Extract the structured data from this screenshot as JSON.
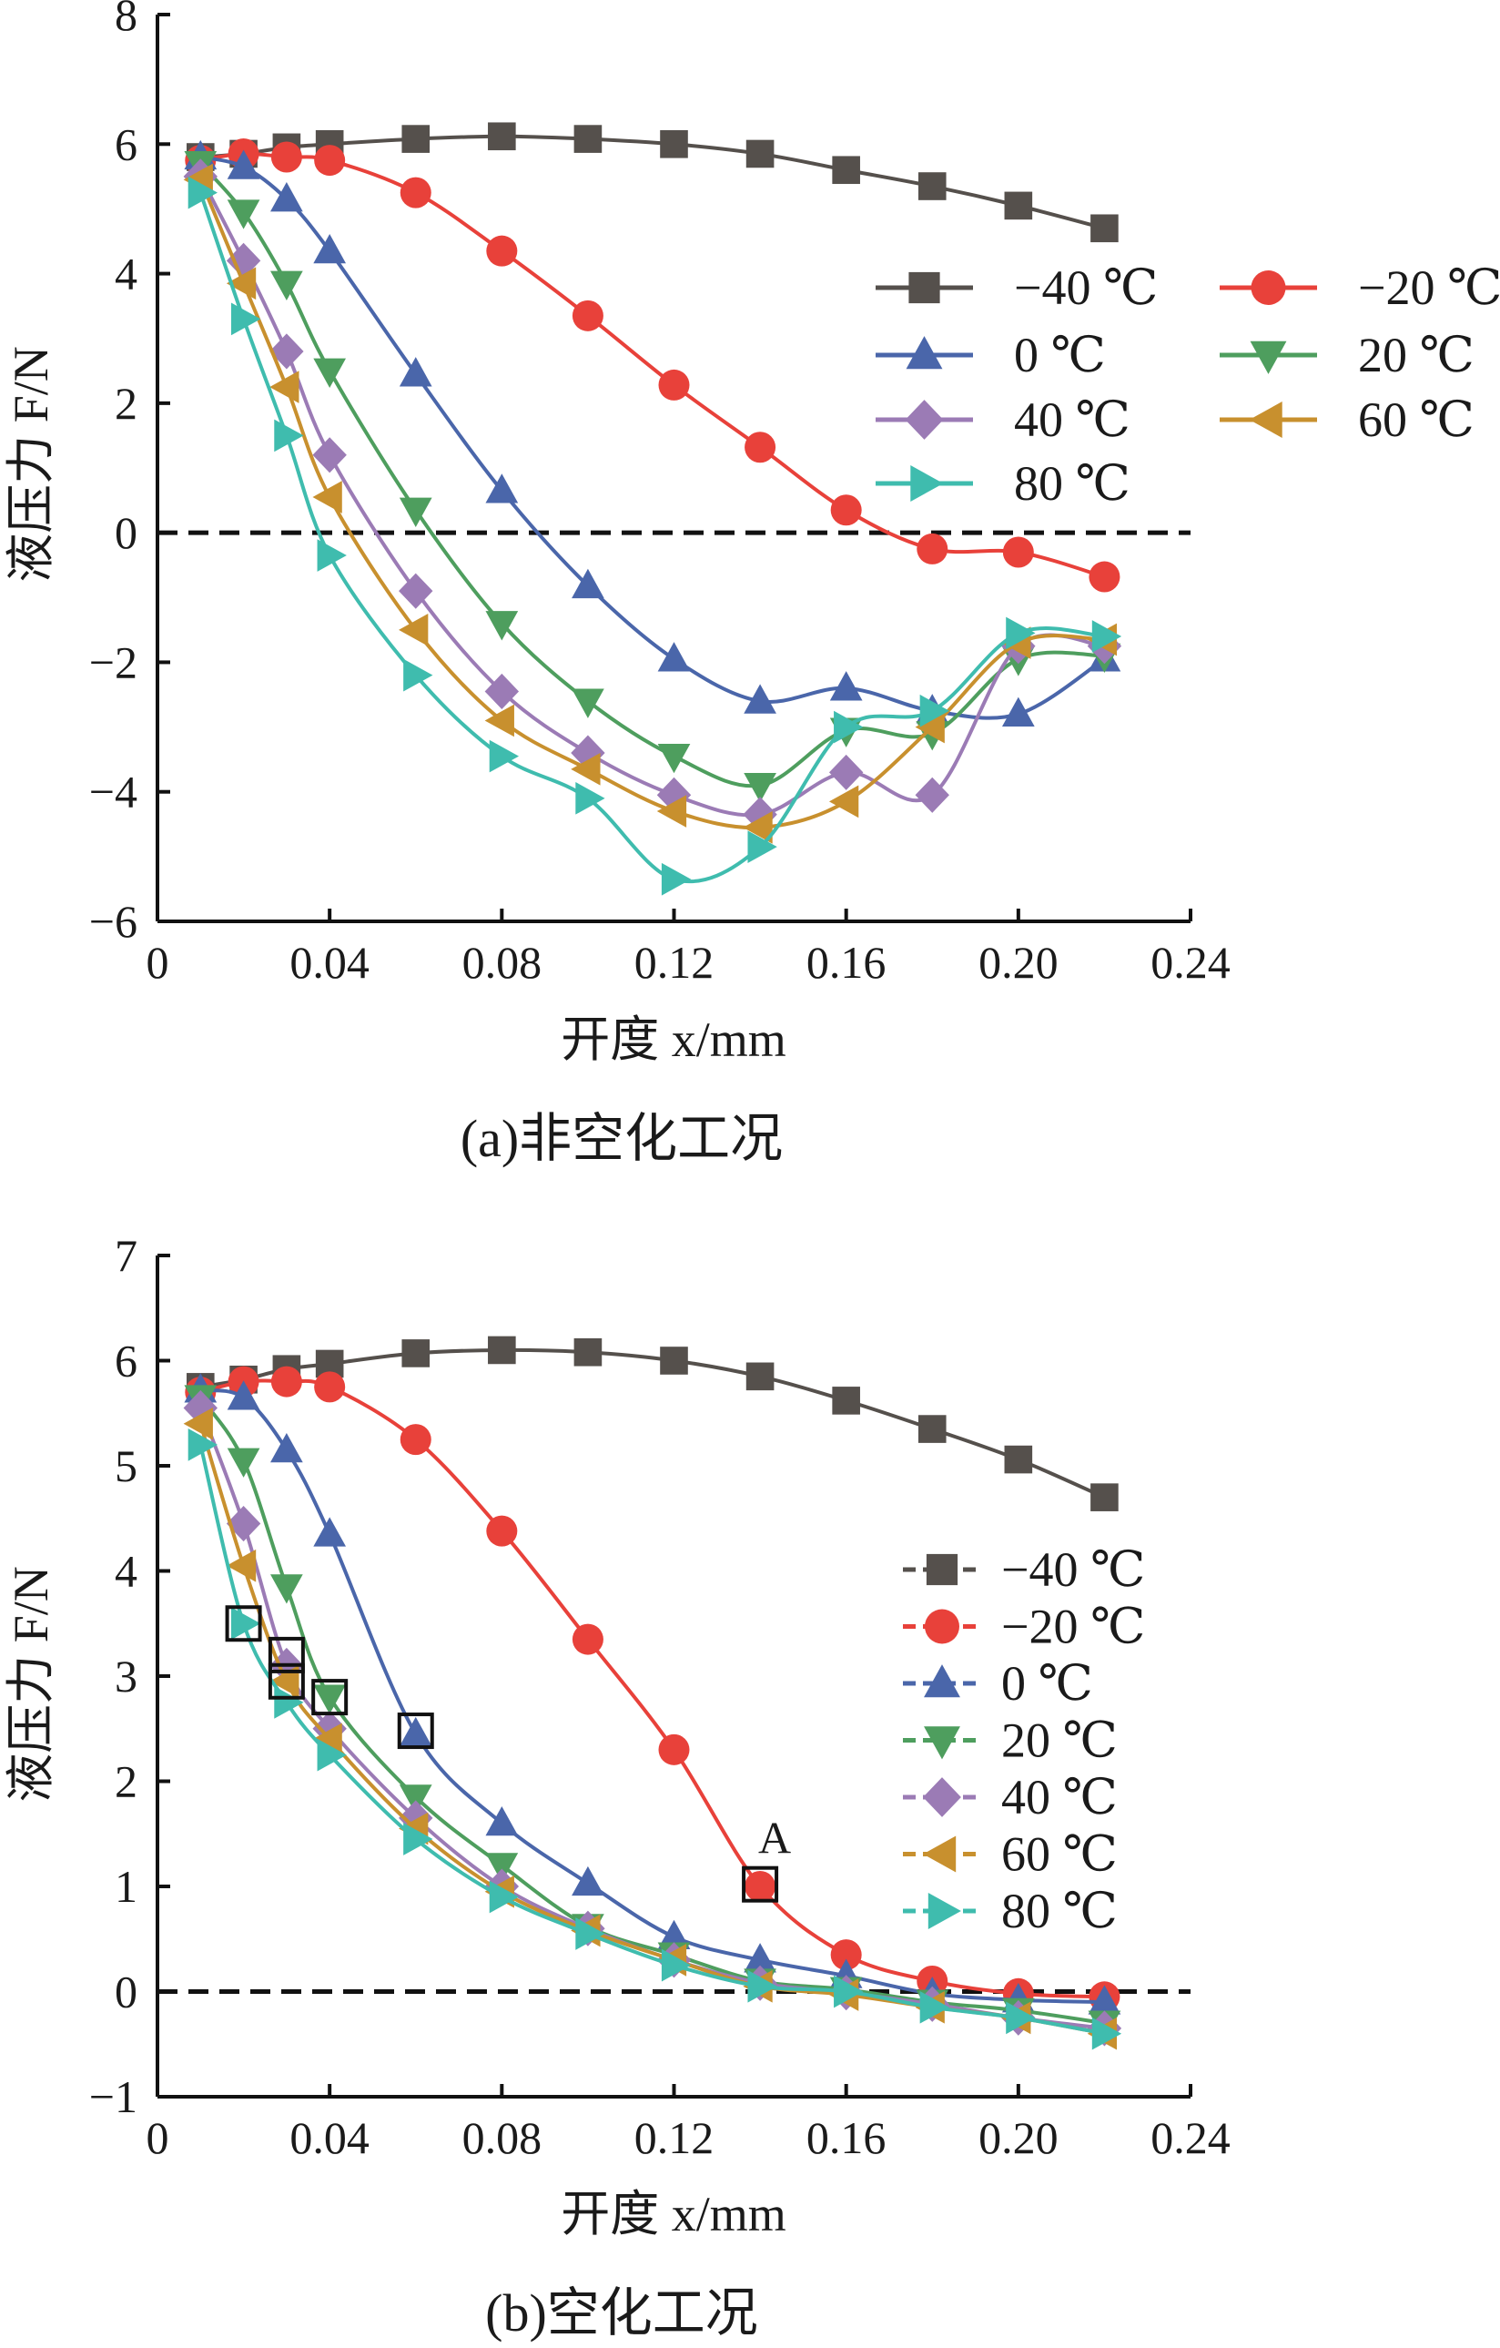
{
  "chart_data": [
    {
      "type": "line",
      "caption": "(a)非空化工况",
      "xlabel": "开度 x/mm",
      "ylabel": "液压力 F/N",
      "xlim": [
        0,
        0.24
      ],
      "ylim": [
        -6,
        8
      ],
      "x_ticks": [
        "0",
        "0.04",
        "0.08",
        "0.12",
        "0.16",
        "0.20",
        "0.24"
      ],
      "y_ticks": [
        "−6",
        "−4",
        "−2",
        "0",
        "2",
        "4",
        "6",
        "8"
      ],
      "reference_line": {
        "y": 0,
        "style": "dashed"
      },
      "legend": {
        "placement": "right",
        "columns": 2,
        "line_style": "solid"
      },
      "x": [
        0.01,
        0.02,
        0.03,
        0.04,
        0.06,
        0.08,
        0.1,
        0.12,
        0.14,
        0.16,
        0.18,
        0.2,
        0.22
      ],
      "series": [
        {
          "name": "−40 ℃",
          "marker": "square",
          "color": "#55504c",
          "values": [
            5.8,
            5.85,
            5.95,
            6.0,
            6.08,
            6.12,
            6.08,
            6.0,
            5.85,
            5.6,
            5.35,
            5.05,
            4.7
          ]
        },
        {
          "name": "−20 ℃",
          "marker": "circle",
          "color": "#e8413a",
          "values": [
            5.75,
            5.85,
            5.8,
            5.75,
            5.25,
            4.35,
            3.35,
            2.28,
            1.32,
            0.35,
            -0.25,
            -0.3,
            -0.68
          ]
        },
        {
          "name": "0 ℃",
          "marker": "triangle-up",
          "color": "#4a66aa",
          "values": [
            5.8,
            5.65,
            5.15,
            4.35,
            2.45,
            0.65,
            -0.82,
            -1.95,
            -2.6,
            -2.4,
            -2.75,
            -2.8,
            -1.95
          ]
        },
        {
          "name": "20 ℃",
          "marker": "triangle-down",
          "color": "#4e9e5e",
          "values": [
            5.7,
            4.95,
            3.85,
            2.5,
            0.35,
            -1.4,
            -2.6,
            -3.45,
            -3.9,
            -3.05,
            -3.1,
            -1.95,
            -1.9
          ]
        },
        {
          "name": "40 ℃",
          "marker": "diamond",
          "color": "#9b7bb5",
          "values": [
            5.5,
            4.2,
            2.8,
            1.2,
            -0.9,
            -2.45,
            -3.4,
            -4.05,
            -4.35,
            -3.7,
            -4.05,
            -1.75,
            -1.75
          ]
        },
        {
          "name": "60 ℃",
          "marker": "triangle-left",
          "color": "#c8902e",
          "values": [
            5.45,
            3.85,
            2.25,
            0.55,
            -1.5,
            -2.9,
            -3.65,
            -4.3,
            -4.55,
            -4.15,
            -3.0,
            -1.7,
            -1.65
          ]
        },
        {
          "name": "80 ℃",
          "marker": "triangle-right",
          "color": "#3fbcae",
          "values": [
            5.25,
            3.3,
            1.5,
            -0.35,
            -2.2,
            -3.45,
            -4.1,
            -5.35,
            -4.85,
            -3.0,
            -2.75,
            -1.55,
            -1.6
          ]
        }
      ],
      "highlights": []
    },
    {
      "type": "line",
      "caption": "(b)空化工况",
      "xlabel": "开度 x/mm",
      "ylabel": "液压力 F/N",
      "xlim": [
        0,
        0.24
      ],
      "ylim": [
        -1,
        7
      ],
      "x_ticks": [
        "0",
        "0.04",
        "0.08",
        "0.12",
        "0.16",
        "0.20",
        "0.24"
      ],
      "y_ticks": [
        "−1",
        "0",
        "1",
        "2",
        "3",
        "4",
        "5",
        "6",
        "7"
      ],
      "reference_line": {
        "y": 0,
        "style": "dashed"
      },
      "legend": {
        "placement": "right",
        "columns": 1,
        "line_style": "dashed"
      },
      "x": [
        0.01,
        0.02,
        0.03,
        0.04,
        0.06,
        0.08,
        0.1,
        0.12,
        0.14,
        0.16,
        0.18,
        0.2,
        0.22
      ],
      "series": [
        {
          "name": "−40 ℃",
          "marker": "square",
          "color": "#55504c",
          "values": [
            5.75,
            5.82,
            5.92,
            5.97,
            6.07,
            6.1,
            6.08,
            6.0,
            5.85,
            5.62,
            5.35,
            5.06,
            4.7
          ]
        },
        {
          "name": "−20 ℃",
          "marker": "circle",
          "color": "#e8413a",
          "values": [
            5.7,
            5.8,
            5.8,
            5.75,
            5.25,
            4.38,
            3.35,
            2.3,
            1.0,
            0.35,
            0.1,
            -0.02,
            -0.05
          ]
        },
        {
          "name": "0 ℃",
          "marker": "triangle-up",
          "color": "#4a66aa",
          "values": [
            5.72,
            5.65,
            5.15,
            4.35,
            2.45,
            1.6,
            1.03,
            0.52,
            0.3,
            0.15,
            -0.02,
            -0.08,
            -0.1
          ]
        },
        {
          "name": "20 ℃",
          "marker": "triangle-down",
          "color": "#4e9e5e",
          "values": [
            5.65,
            5.05,
            3.85,
            2.8,
            1.85,
            1.2,
            0.62,
            0.35,
            0.1,
            0.02,
            -0.1,
            -0.18,
            -0.3
          ]
        },
        {
          "name": "40 ℃",
          "marker": "diamond",
          "color": "#9b7bb5",
          "values": [
            5.55,
            4.45,
            3.1,
            2.5,
            1.65,
            1.0,
            0.6,
            0.3,
            0.08,
            -0.01,
            -0.12,
            -0.25,
            -0.35
          ]
        },
        {
          "name": "60 ℃",
          "marker": "triangle-left",
          "color": "#c8902e",
          "values": [
            5.4,
            4.05,
            2.95,
            2.4,
            1.55,
            0.95,
            0.58,
            0.3,
            0.05,
            -0.03,
            -0.15,
            -0.25,
            -0.4
          ]
        },
        {
          "name": "80 ℃",
          "marker": "triangle-right",
          "color": "#3fbcae",
          "values": [
            5.2,
            3.5,
            2.75,
            2.25,
            1.45,
            0.9,
            0.55,
            0.25,
            0.05,
            0.0,
            -0.15,
            -0.25,
            -0.4
          ]
        }
      ],
      "highlights": [
        {
          "x": 0.02,
          "y": 3.5
        },
        {
          "x": 0.03,
          "y": 3.2
        },
        {
          "x": 0.03,
          "y": 2.95
        },
        {
          "x": 0.04,
          "y": 2.8
        },
        {
          "x": 0.06,
          "y": 2.48
        },
        {
          "x": 0.14,
          "y": 1.02,
          "label": "A"
        }
      ]
    }
  ]
}
